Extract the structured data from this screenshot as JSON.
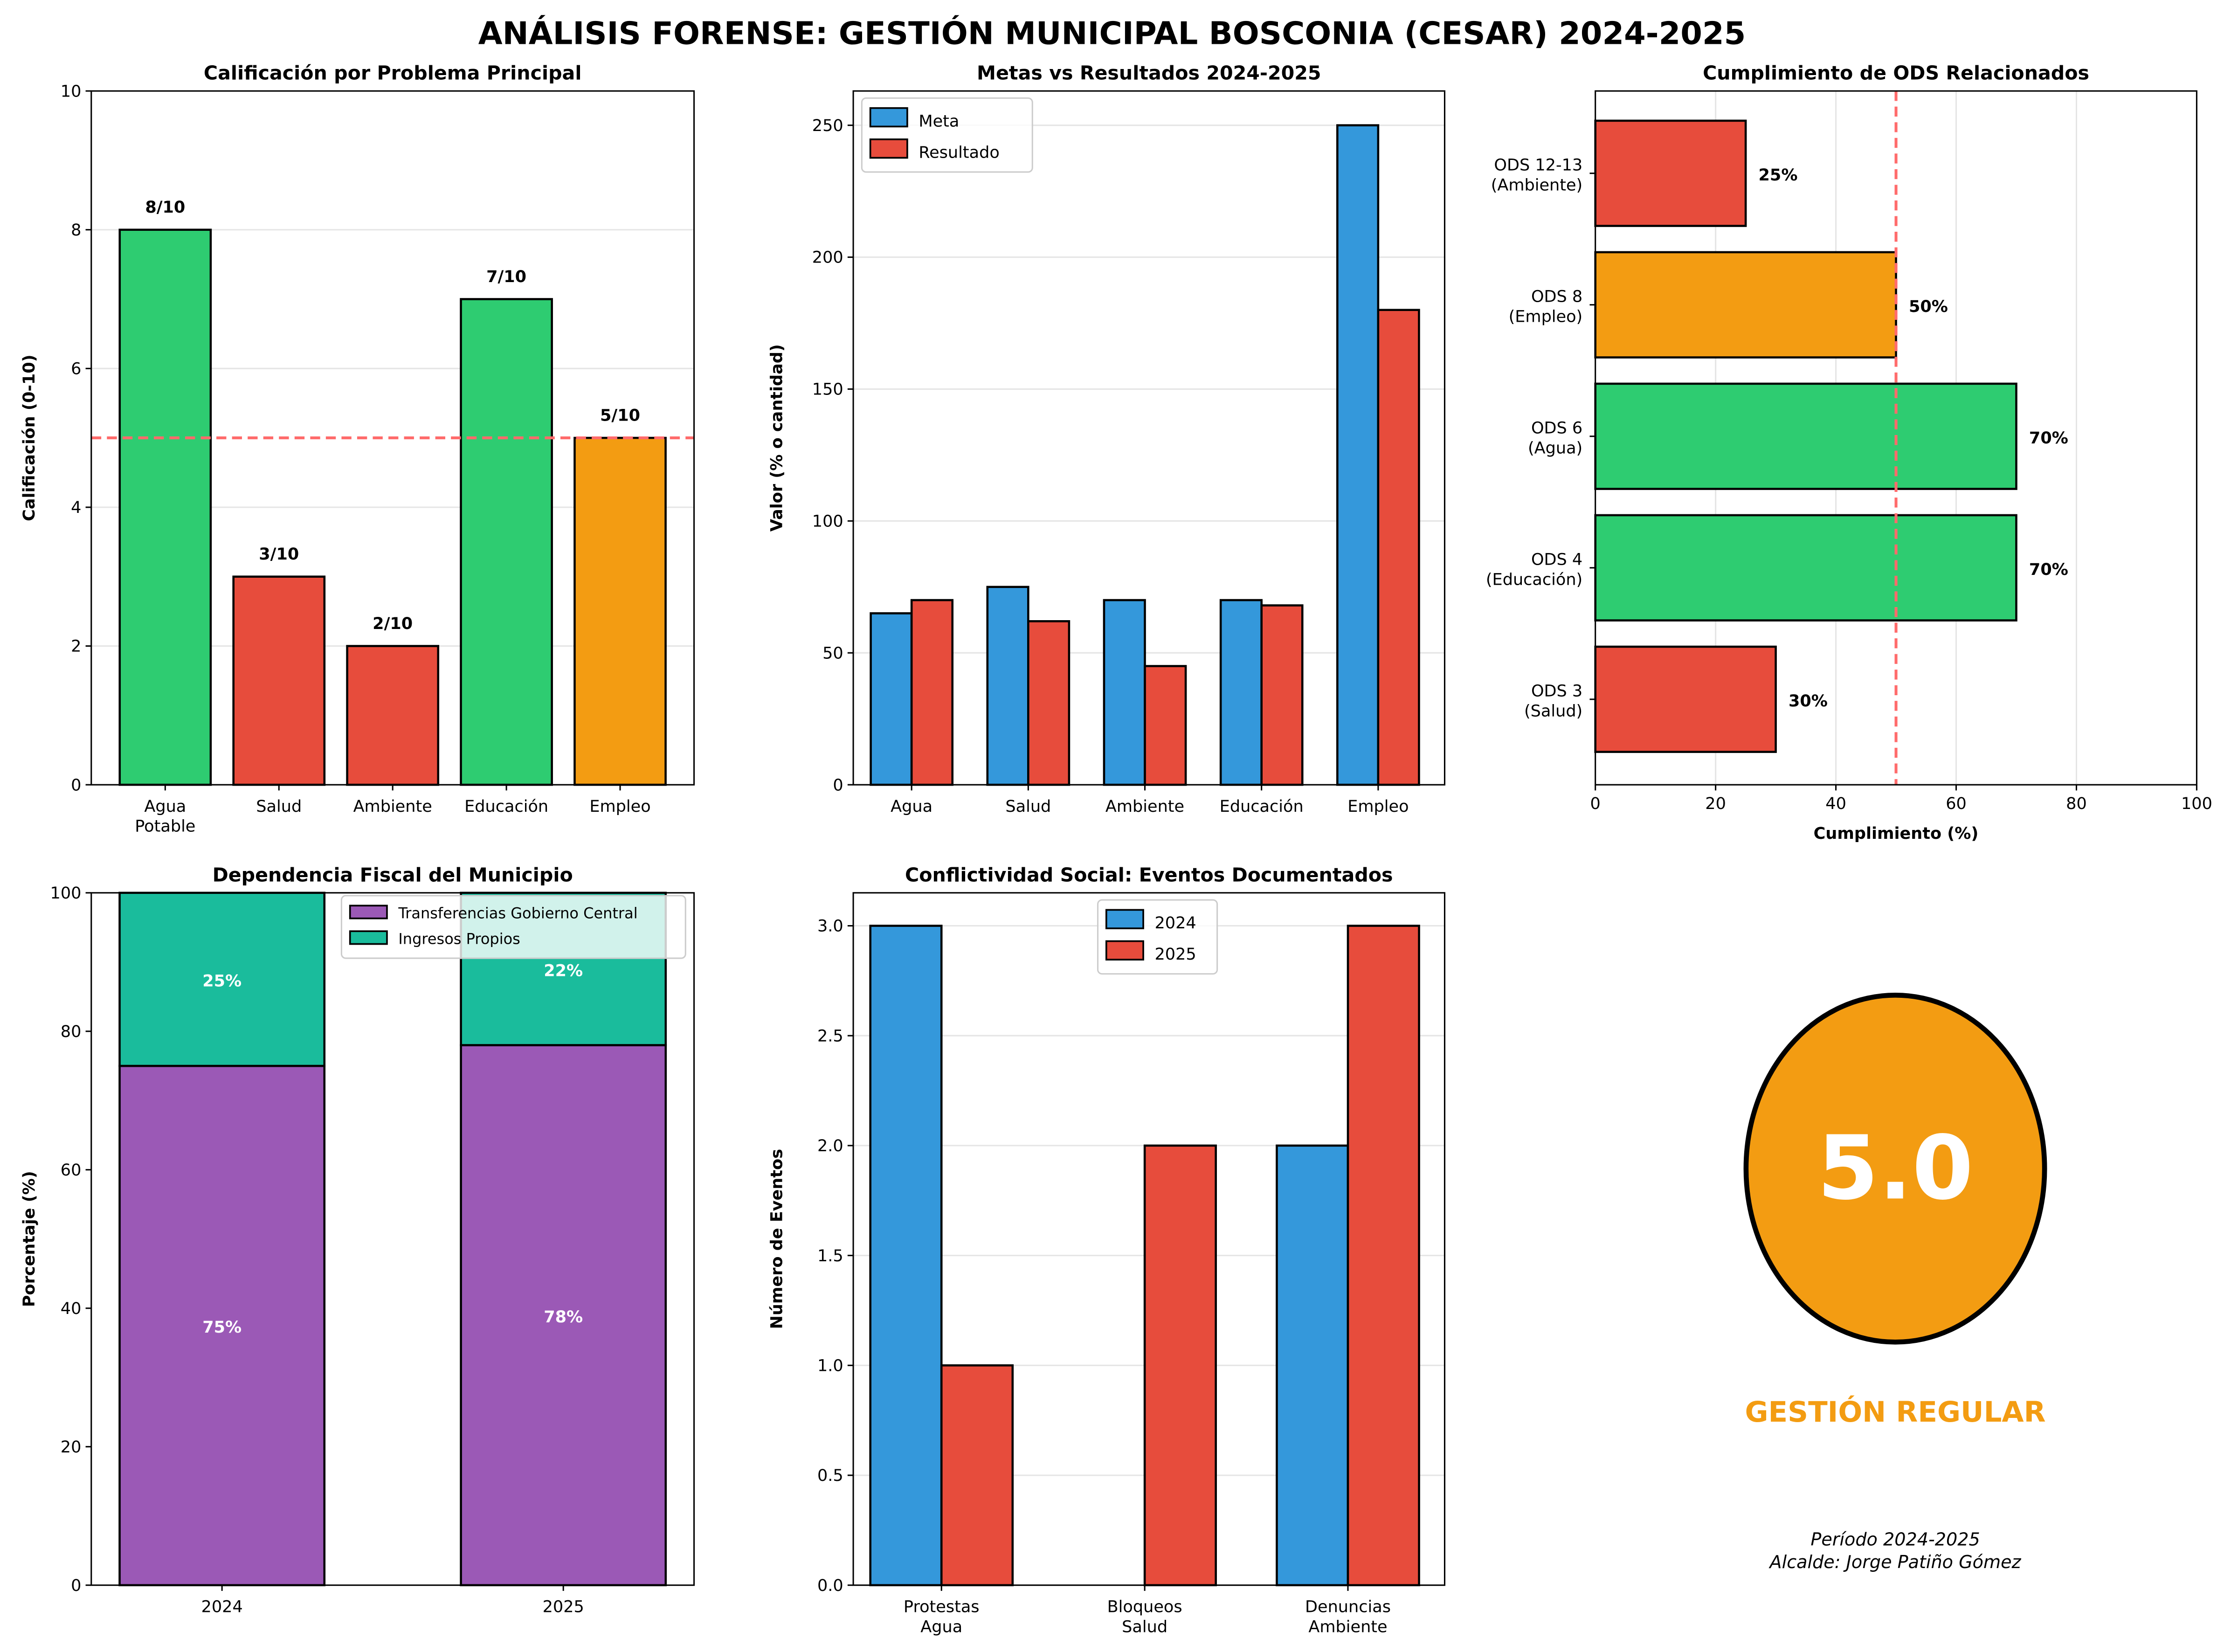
{
  "title": "ANÁLISIS FORENSE: GESTIÓN MUNICIPAL BOSCONIA (CESAR) 2024-2025",
  "colors": {
    "green": "#2ecc71",
    "red": "#e74c3c",
    "orange": "#f39c12",
    "blue": "#3498db",
    "purple": "#9b59b6",
    "teal": "#1abc9c",
    "threshold": "#ff6b6b"
  },
  "chart_data": [
    {
      "type": "bar",
      "title": "Calificación por Problema Principal",
      "xlabel": "",
      "ylabel": "Calificación (0-10)",
      "categories": [
        "Agua\nPotable",
        "Salud",
        "Ambiente",
        "Educación",
        "Empleo"
      ],
      "values": [
        8,
        3,
        2,
        7,
        5
      ],
      "bar_colors": [
        "#2ecc71",
        "#e74c3c",
        "#e74c3c",
        "#2ecc71",
        "#f39c12"
      ],
      "data_labels": [
        "8/10",
        "3/10",
        "2/10",
        "7/10",
        "5/10"
      ],
      "ylim": [
        0,
        10
      ],
      "yticks": [
        0,
        2,
        4,
        6,
        8,
        10
      ],
      "reference_line": 5,
      "grid": "y"
    },
    {
      "type": "bar",
      "title": "Metas vs Resultados 2024-2025",
      "xlabel": "",
      "ylabel": "Valor (% o cantidad)",
      "categories": [
        "Agua",
        "Salud",
        "Ambiente",
        "Educación",
        "Empleo"
      ],
      "series": [
        {
          "name": "Meta",
          "values": [
            65,
            75,
            70,
            70,
            250
          ],
          "color": "#3498db"
        },
        {
          "name": "Resultado",
          "values": [
            70,
            62,
            45,
            68,
            180
          ],
          "color": "#e74c3c"
        }
      ],
      "ylim": [
        0,
        263
      ],
      "yticks": [
        0,
        50,
        100,
        150,
        200,
        250
      ],
      "legend": "top-left",
      "grid": "y"
    },
    {
      "type": "bar",
      "orientation": "horizontal",
      "title": "Cumplimiento de ODS Relacionados",
      "xlabel": "Cumplimiento (%)",
      "ylabel": "",
      "categories": [
        "ODS 3\n(Salud)",
        "ODS 4\n(Educación)",
        "ODS 6\n(Agua)",
        "ODS 8\n(Empleo)",
        "ODS 12-13\n(Ambiente)"
      ],
      "values": [
        30,
        70,
        70,
        50,
        25
      ],
      "bar_colors": [
        "#e74c3c",
        "#2ecc71",
        "#2ecc71",
        "#f39c12",
        "#e74c3c"
      ],
      "data_labels": [
        "30%",
        "70%",
        "70%",
        "50%",
        "25%"
      ],
      "xlim": [
        0,
        100
      ],
      "xticks": [
        0,
        20,
        40,
        60,
        80,
        100
      ],
      "reference_line": 50,
      "grid": "x"
    },
    {
      "type": "bar",
      "stacked": true,
      "title": "Dependencia Fiscal del Municipio",
      "xlabel": "",
      "ylabel": "Porcentaje (%)",
      "categories": [
        "2024",
        "2025"
      ],
      "series": [
        {
          "name": "Transferencias Gobierno Central",
          "values": [
            75,
            78
          ],
          "color": "#9b59b6",
          "data_labels": [
            "75%",
            "78%"
          ]
        },
        {
          "name": "Ingresos Propios",
          "values": [
            25,
            22
          ],
          "color": "#1abc9c",
          "data_labels": [
            "25%",
            "22%"
          ]
        }
      ],
      "ylim": [
        0,
        100
      ],
      "yticks": [
        0,
        20,
        40,
        60,
        80,
        100
      ],
      "legend": "top-right"
    },
    {
      "type": "bar",
      "title": "Conflictividad Social: Eventos Documentados",
      "xlabel": "",
      "ylabel": "Número de Eventos",
      "categories": [
        "Protestas\nAgua",
        "Bloqueos\nSalud",
        "Denuncias\nAmbiente"
      ],
      "series": [
        {
          "name": "2024",
          "values": [
            3,
            0,
            2
          ],
          "color": "#3498db"
        },
        {
          "name": "2025",
          "values": [
            1,
            2,
            3
          ],
          "color": "#e74c3c"
        }
      ],
      "ylim": [
        0,
        3.15
      ],
      "yticks": [
        0.0,
        0.5,
        1.0,
        1.5,
        2.0,
        2.5,
        3.0
      ],
      "ytick_labels": [
        "0.0",
        "0.5",
        "1.0",
        "1.5",
        "2.0",
        "2.5",
        "3.0"
      ],
      "legend": "top-center",
      "grid": "y"
    }
  ],
  "score": {
    "value": "5.0",
    "color": "#f39c12",
    "label": "GESTIÓN REGULAR",
    "period": "Período 2024-2025",
    "mayor": "Alcalde: Jorge Patiño Gómez"
  }
}
